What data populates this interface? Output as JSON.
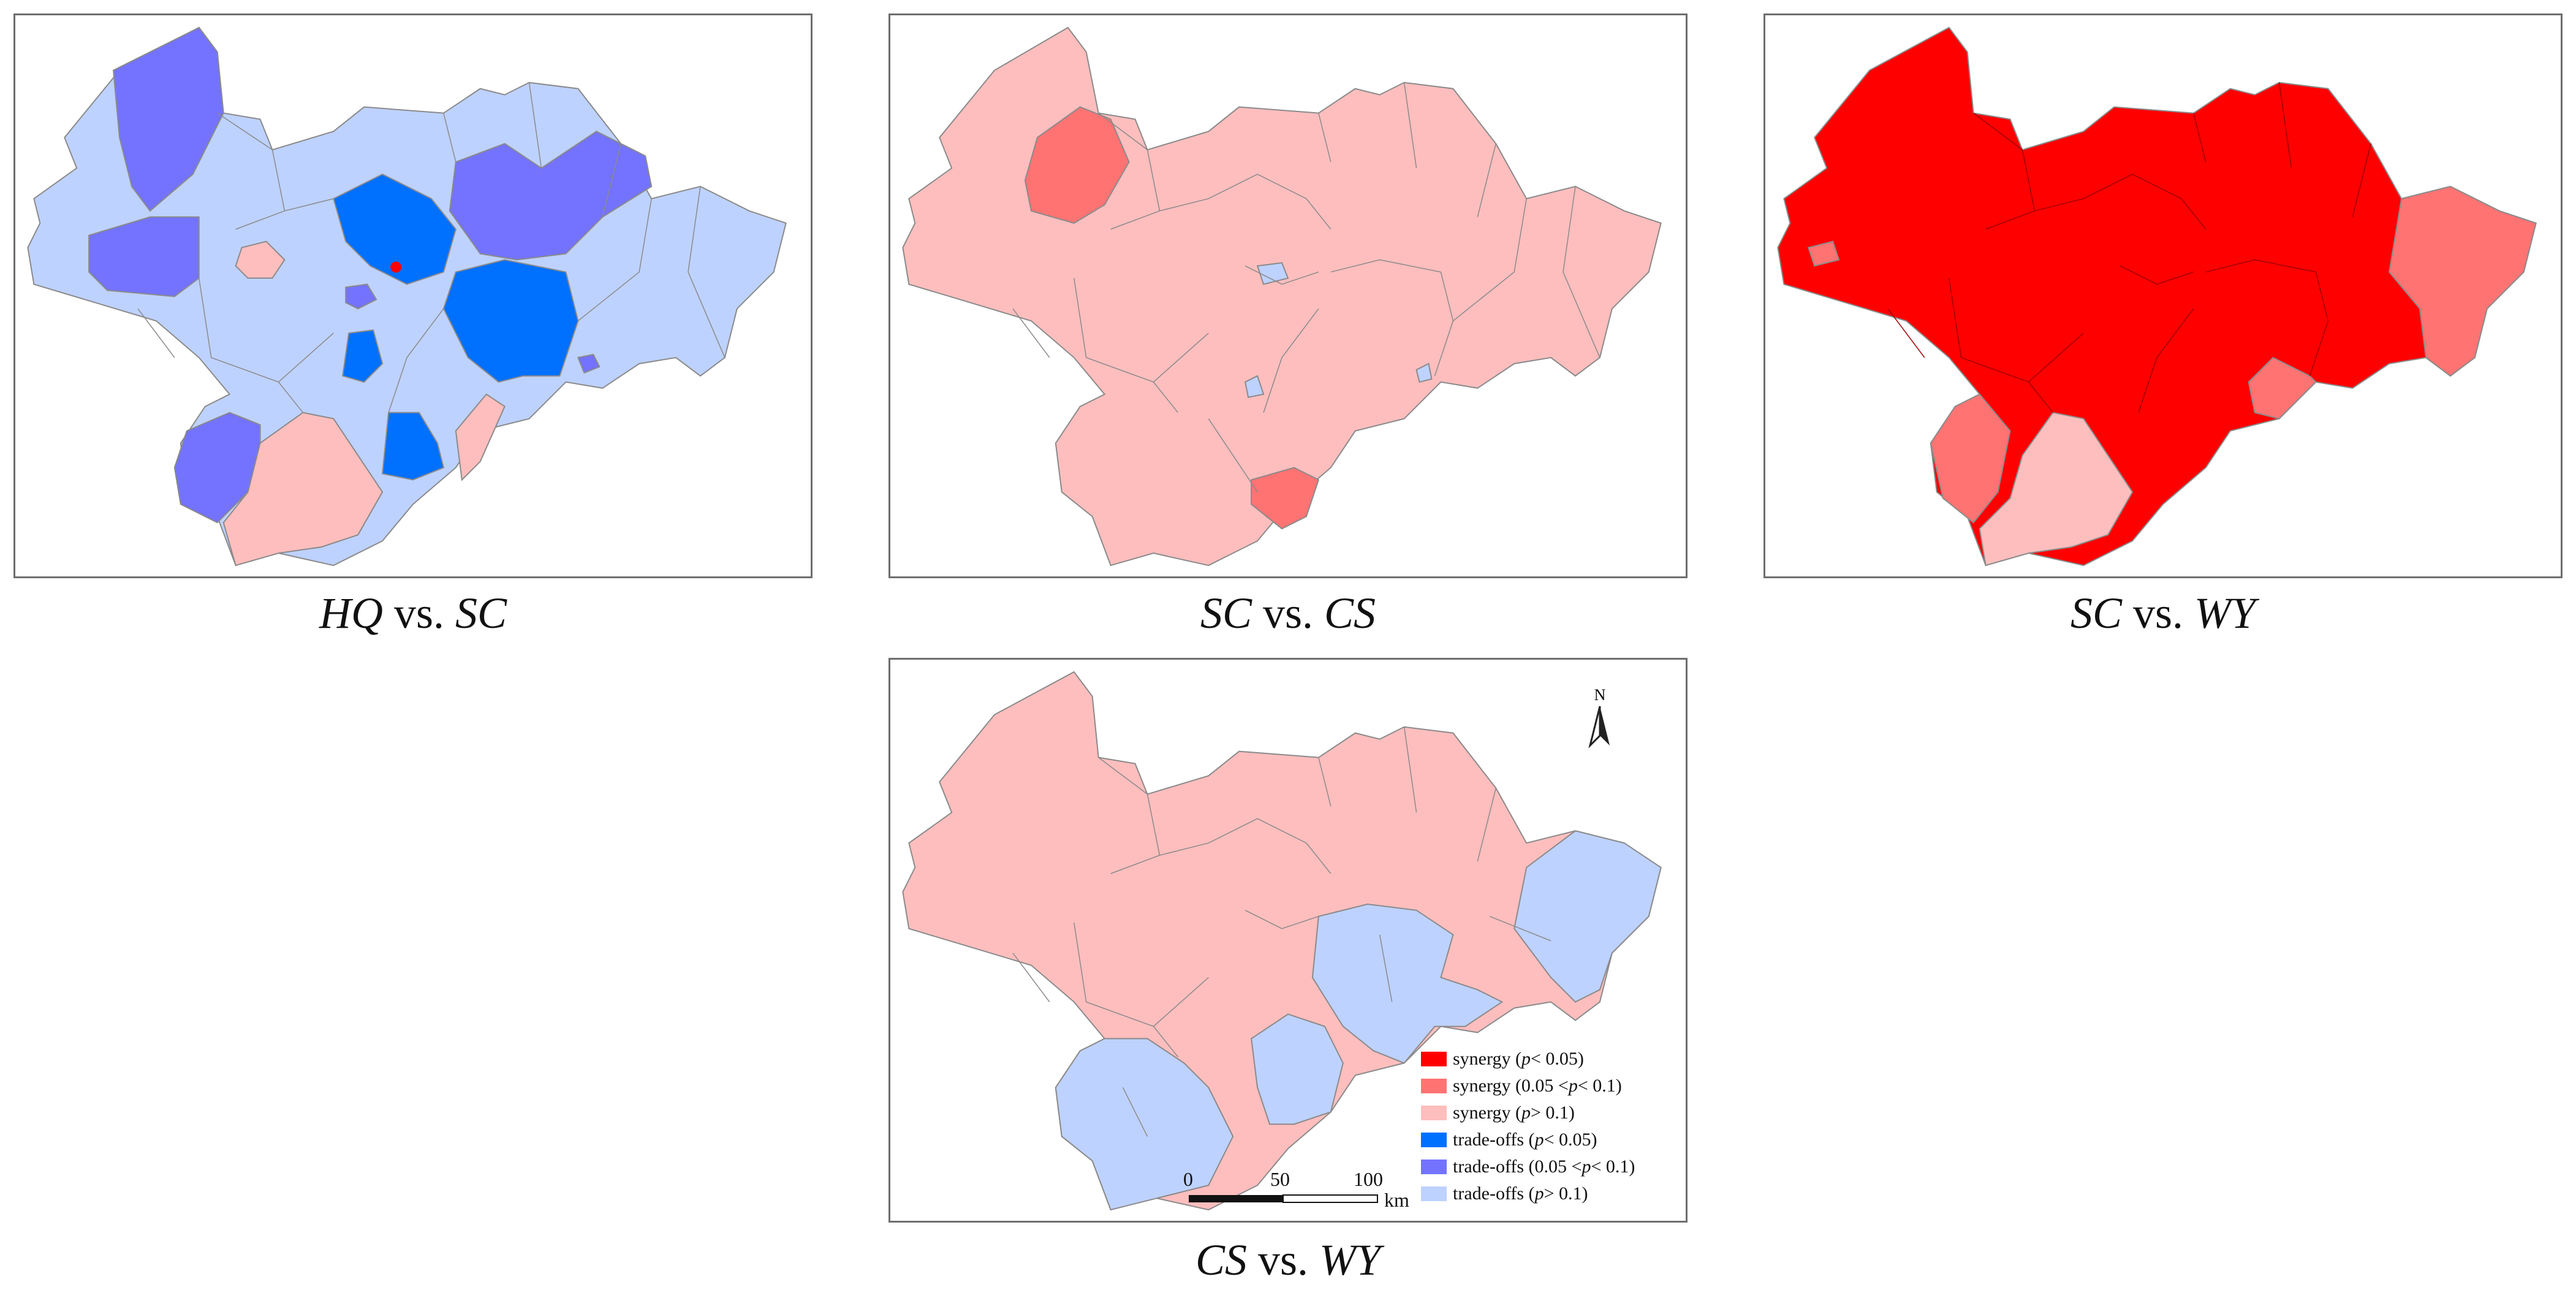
{
  "panels": [
    {
      "id": "hq-sc",
      "caption_a": "HQ",
      "caption_vs": " vs. ",
      "caption_b": "SC"
    },
    {
      "id": "sc-cs",
      "caption_a": "SC",
      "caption_vs": " vs. ",
      "caption_b": "CS"
    },
    {
      "id": "sc-wy",
      "caption_a": "SC",
      "caption_vs": " vs. ",
      "caption_b": "WY"
    },
    {
      "id": "cs-wy",
      "caption_a": "CS",
      "caption_vs": " vs. ",
      "caption_b": "WY"
    }
  ],
  "legend": {
    "items": [
      {
        "pre": "synergy ( ",
        "p": "p",
        "post": " < 0.05)",
        "color": "#ff0000"
      },
      {
        "pre": "synergy (0.05 < ",
        "p": "p",
        "post": " < 0.1)",
        "color": "#ff7373"
      },
      {
        "pre": "synergy ( ",
        "p": "p",
        "post": " > 0.1)",
        "color": "#ffbebe"
      },
      {
        "pre": "trade-offs ( ",
        "p": "p",
        "post": " < 0.05)",
        "color": "#0070ff"
      },
      {
        "pre": "trade-offs (0.05 < ",
        "p": "p",
        "post": " < 0.1)",
        "color": "#7373ff"
      },
      {
        "pre": "trade-offs ( ",
        "p": "p",
        "post": " > 0.1)",
        "color": "#bed2ff"
      }
    ]
  },
  "scale": {
    "ticks": [
      "0",
      "50",
      "100"
    ],
    "unit": "km"
  },
  "north_label": "N",
  "colors": {
    "synergy_p005": "#ff0000",
    "synergy_p01": "#ff7373",
    "synergy_pgt": "#ffbebe",
    "tradeoff_p005": "#0070ff",
    "tradeoff_p01": "#7373ff",
    "tradeoff_pgt": "#bed2ff",
    "boundary": "#8a8a8a",
    "frame": "#6e6e6e"
  }
}
